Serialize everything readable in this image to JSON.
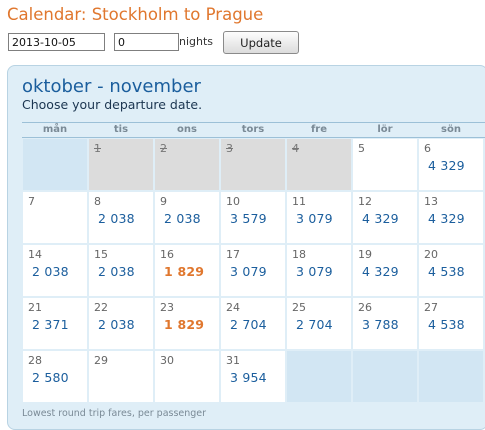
{
  "header": {
    "title": "Calendar: Stockholm to Prague"
  },
  "controls": {
    "date_value": "2013-10-05",
    "nights_value": "0",
    "nights_label": "nights",
    "update_label": "Update"
  },
  "calendar": {
    "month_title": "oktober - november",
    "subtitle": "Choose your departure date.",
    "weekdays": [
      "mån",
      "tis",
      "ons",
      "tors",
      "fre",
      "lör",
      "sön"
    ],
    "cells": [
      {
        "kind": "empty"
      },
      {
        "kind": "past",
        "day": "1"
      },
      {
        "kind": "past",
        "day": "2"
      },
      {
        "kind": "past",
        "day": "3"
      },
      {
        "kind": "past",
        "day": "4"
      },
      {
        "kind": "day",
        "day": "5",
        "price": ""
      },
      {
        "kind": "day",
        "day": "6",
        "price": "4 329"
      },
      {
        "kind": "day",
        "day": "7",
        "price": ""
      },
      {
        "kind": "day",
        "day": "8",
        "price": "2 038"
      },
      {
        "kind": "day",
        "day": "9",
        "price": "2 038"
      },
      {
        "kind": "day",
        "day": "10",
        "price": "3 579"
      },
      {
        "kind": "day",
        "day": "11",
        "price": "3 079"
      },
      {
        "kind": "day",
        "day": "12",
        "price": "4 329"
      },
      {
        "kind": "day",
        "day": "13",
        "price": "4 329"
      },
      {
        "kind": "day",
        "day": "14",
        "price": "2 038"
      },
      {
        "kind": "day",
        "day": "15",
        "price": "2 038"
      },
      {
        "kind": "day",
        "day": "16",
        "price": "1 829",
        "lowest": true
      },
      {
        "kind": "day",
        "day": "17",
        "price": "3 079"
      },
      {
        "kind": "day",
        "day": "18",
        "price": "3 079"
      },
      {
        "kind": "day",
        "day": "19",
        "price": "4 329"
      },
      {
        "kind": "day",
        "day": "20",
        "price": "4 538"
      },
      {
        "kind": "day",
        "day": "21",
        "price": "2 371"
      },
      {
        "kind": "day",
        "day": "22",
        "price": "2 038"
      },
      {
        "kind": "day",
        "day": "23",
        "price": "1 829",
        "lowest": true
      },
      {
        "kind": "day",
        "day": "24",
        "price": "2 704"
      },
      {
        "kind": "day",
        "day": "25",
        "price": "2 704"
      },
      {
        "kind": "day",
        "day": "26",
        "price": "3 788"
      },
      {
        "kind": "day",
        "day": "27",
        "price": "4 538"
      },
      {
        "kind": "day",
        "day": "28",
        "price": "2 580"
      },
      {
        "kind": "day",
        "day": "29",
        "price": ""
      },
      {
        "kind": "day",
        "day": "30",
        "price": ""
      },
      {
        "kind": "day",
        "day": "31",
        "price": "3 954"
      },
      {
        "kind": "empty"
      },
      {
        "kind": "empty"
      },
      {
        "kind": "empty"
      }
    ],
    "footnote": "Lowest round trip fares, per passenger"
  },
  "colors": {
    "title": "#e0772e",
    "price": "#1b5e9d",
    "lowest_price": "#e0772e",
    "panel_bg": "#dfeef7",
    "past_day_bg": "#dcdcdc"
  }
}
